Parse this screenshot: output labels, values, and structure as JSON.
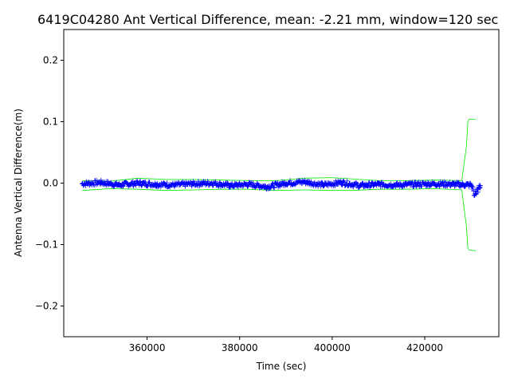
{
  "chart_data": {
    "type": "scatter",
    "title": "6419C04280 Ant Vertical Difference, mean: -2.21 mm, window=120 sec",
    "xlabel": "Time (sec)",
    "ylabel": "Antenna Vertical Difference(m)",
    "xlim": [
      342000,
      436000
    ],
    "ylim": [
      -0.25,
      0.25
    ],
    "xticks": [
      360000,
      380000,
      400000,
      420000
    ],
    "xtick_labels": [
      "360000",
      "380000",
      "400000",
      "420000"
    ],
    "yticks": [
      -0.2,
      -0.1,
      0.0,
      0.1,
      0.2
    ],
    "ytick_labels": [
      "−0.2",
      "−0.1",
      "0.0",
      "0.1",
      "0.2"
    ],
    "grid": false,
    "legend": "none",
    "series": [
      {
        "marker": "+",
        "color": "#0000ff",
        "x_range": [
          346000,
          432000
        ],
        "x": [
          346000,
          350000,
          354000,
          358000,
          362000,
          366000,
          370000,
          374000,
          378000,
          382000,
          386000,
          390000,
          394000,
          398000,
          402000,
          406000,
          410000,
          414000,
          418000,
          422000,
          426000,
          430000,
          431000,
          432000
        ],
        "y": [
          -0.001,
          0.001,
          -0.003,
          0.0,
          -0.002,
          -0.003,
          -0.001,
          0.0,
          -0.004,
          -0.002,
          -0.006,
          0.0,
          0.002,
          -0.003,
          0.001,
          -0.004,
          -0.002,
          -0.003,
          -0.002,
          -0.001,
          -0.002,
          -0.003,
          -0.018,
          -0.004
        ],
        "jitter": 0.004
      },
      {
        "style": "line",
        "color": "#00ee00",
        "name_hint": "upper",
        "x": [
          346000,
          352000,
          358000,
          364000,
          370000,
          376000,
          382000,
          388000,
          394000,
          400000,
          404000,
          410000,
          416000,
          422000,
          428000,
          429000,
          429300,
          429600,
          431000
        ],
        "y": [
          0.004,
          0.003,
          0.008,
          0.006,
          0.006,
          0.005,
          0.004,
          0.004,
          0.008,
          0.009,
          0.007,
          0.004,
          0.004,
          0.005,
          0.004,
          0.06,
          0.1,
          0.104,
          0.104
        ]
      },
      {
        "style": "line",
        "color": "#00ee00",
        "name_hint": "lower",
        "x": [
          346000,
          352000,
          358000,
          364000,
          370000,
          376000,
          382000,
          388000,
          394000,
          400000,
          404000,
          410000,
          416000,
          422000,
          428000,
          429000,
          429300,
          429600,
          431000
        ],
        "y": [
          -0.012,
          -0.009,
          -0.01,
          -0.012,
          -0.011,
          -0.01,
          -0.01,
          -0.012,
          -0.011,
          -0.012,
          -0.012,
          -0.01,
          -0.01,
          -0.009,
          -0.011,
          -0.07,
          -0.106,
          -0.109,
          -0.11
        ]
      }
    ]
  }
}
